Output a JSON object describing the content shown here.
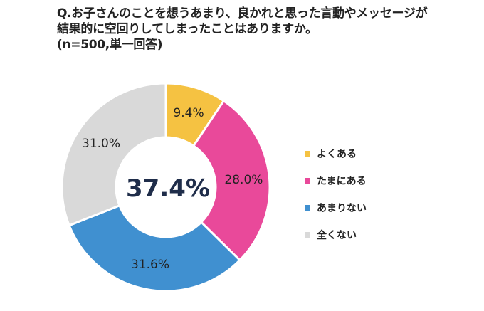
{
  "title": {
    "line1": "Q.お子さんのことを想うあまり、良かれと思った言動やメッセージが",
    "line2": "結果的に空回りしてしまったことはありますか。",
    "line3": "(n=500,単一回答)"
  },
  "center_label": "37.4%",
  "chart_data": {
    "type": "pie",
    "subtype": "donut",
    "title": "Q.お子さんのことを想うあまり、良かれと思った言動やメッセージが結果的に空回りしてしまったことはありますか。(n=500,単一回答)",
    "categories": [
      "よくある",
      "たまにある",
      "あまりない",
      "全くない"
    ],
    "values": [
      9.4,
      28.0,
      31.6,
      31.0
    ],
    "labels": [
      "9.4%",
      "28.0%",
      "31.6%",
      "31.0%"
    ],
    "colors": [
      "#f5c242",
      "#e9499a",
      "#4090d0",
      "#d9d9d9"
    ],
    "center_text": "37.4%",
    "legend_position": "right"
  }
}
